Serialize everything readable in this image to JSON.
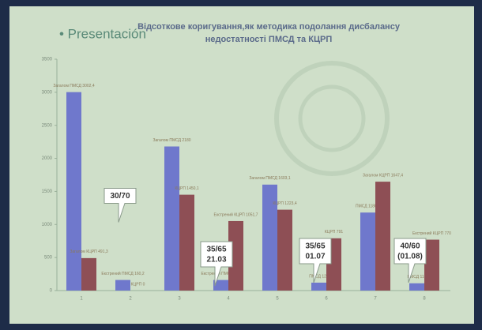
{
  "header": "• Presentación",
  "chart_data": {
    "type": "bar",
    "title": "Відсоткове коригування,як методика подолання дисбалансу",
    "subtitle": "недостатності ПМСД та КЦРП",
    "categories": [
      "1",
      "2",
      "3",
      "4",
      "5",
      "6",
      "7",
      "8"
    ],
    "series": [
      {
        "color": "#6f78cc",
        "values": [
          3002.4,
          160.2,
          2180,
          160,
          1603.1,
          120,
          1180.4,
          110
        ],
        "value_labels": [
          "Загалом ПМСД 3002,4",
          "Екстрений ПМСД 160,2",
          "Загалом ПМСД 2180",
          "Екстрений ПМСД 160",
          "Загалом ПМСД 1603,1",
          "ПМСД 120",
          "ПМСД 1180,4",
          "ПМСД 110"
        ]
      },
      {
        "color": "#8e4f55",
        "values": [
          491.3,
          0,
          1450.1,
          1051.7,
          1223.4,
          791,
          1647.4,
          770
        ],
        "value_labels": [
          "Загалом КЦРП 491,3",
          "КЦРП 0",
          "КЦРП 1450,1",
          "Екстрений КЦРП 1051,7",
          "КЦРП 1223,4",
          "КЦРП 791",
          "Загалом КЦРП 1647,4",
          "Екстрений КЦРП 770"
        ]
      }
    ],
    "annotations": [
      [
        "30/70"
      ],
      [
        "35/65",
        "21.03"
      ],
      [
        "35/65",
        "01.07"
      ],
      [
        "40/60",
        "(01.08)"
      ]
    ],
    "ylim": [
      0,
      3500
    ],
    "yticks": [
      0,
      500,
      1000,
      1500,
      2000,
      2500,
      3000,
      3500
    ]
  }
}
